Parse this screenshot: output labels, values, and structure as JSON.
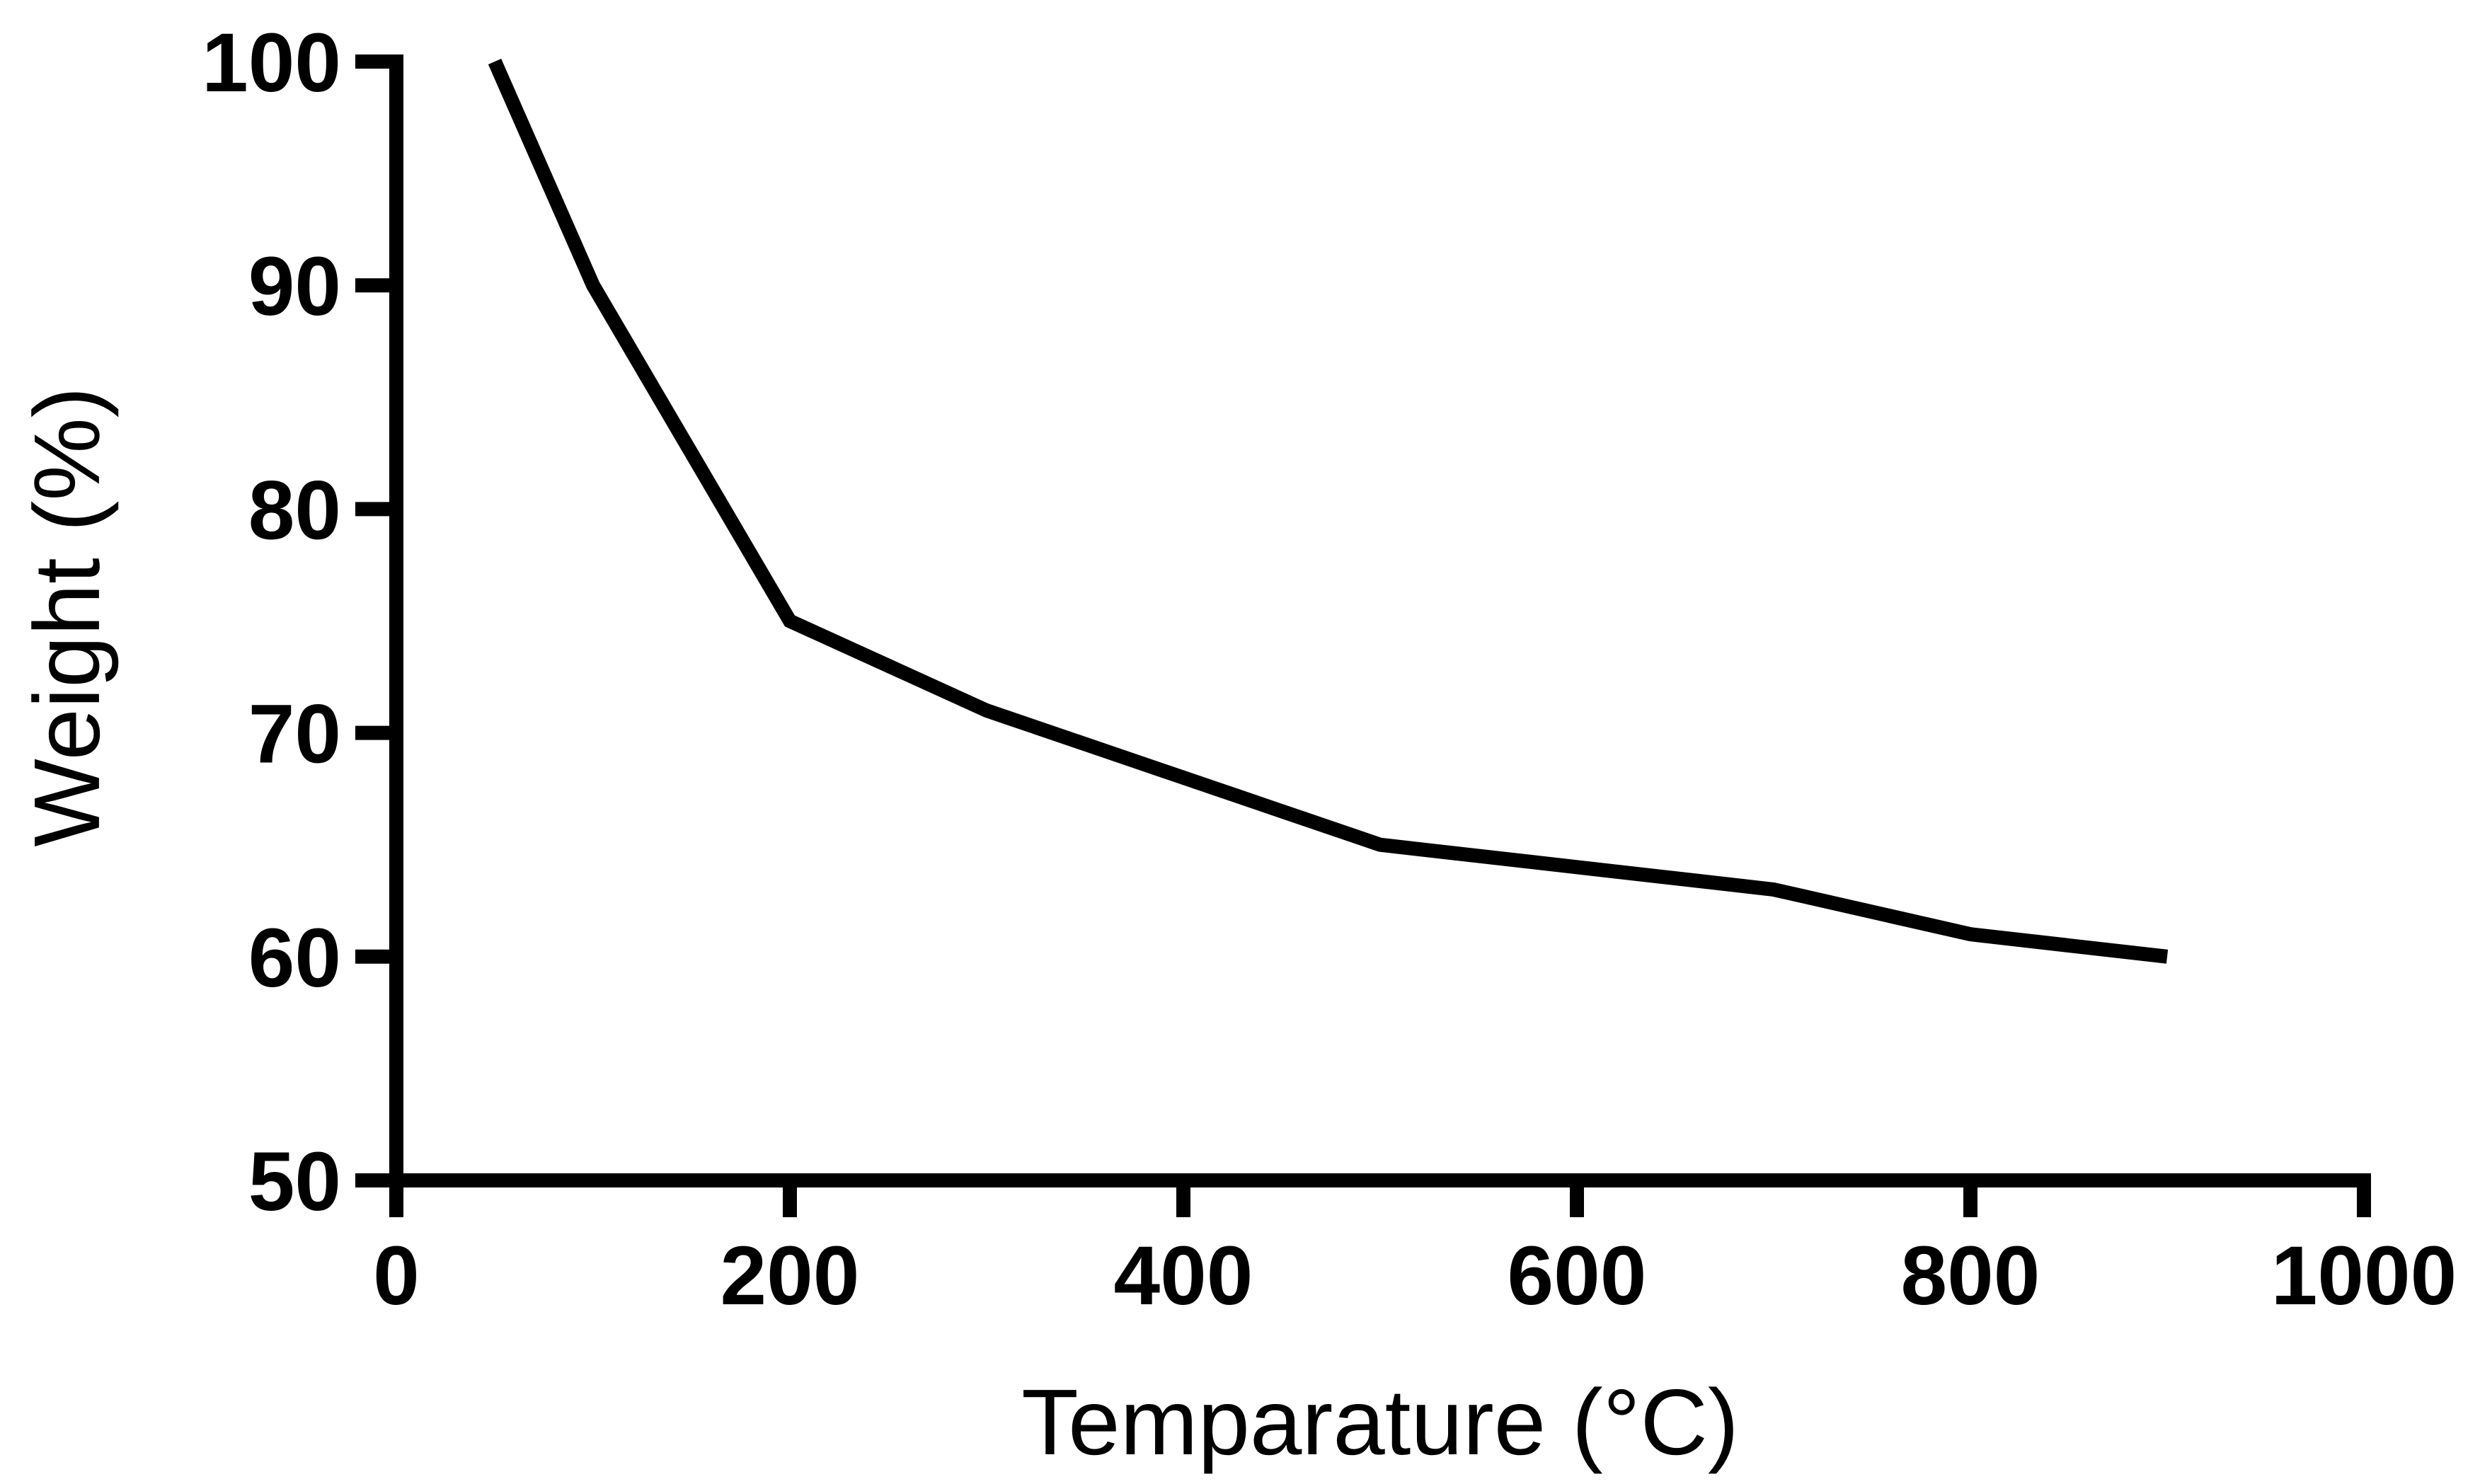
{
  "chart_data": {
    "type": "line",
    "title": "",
    "xlabel": "Temparature (°C)",
    "ylabel": "Weight (%)",
    "xlim": [
      0,
      1000
    ],
    "ylim": [
      50,
      100
    ],
    "xticks": [
      0,
      200,
      400,
      600,
      800,
      1000
    ],
    "yticks": [
      50,
      60,
      70,
      80,
      90,
      100
    ],
    "xtick_labels": [
      "0",
      "200",
      "400",
      "600",
      "800",
      "1000"
    ],
    "ytick_labels": [
      "50",
      "60",
      "70",
      "80",
      "90",
      "100"
    ],
    "grid": false,
    "legend": "none",
    "series": [
      {
        "name": "Weight",
        "color": "#000000",
        "x": [
          50,
          100,
          200,
          300,
          500,
          700,
          800,
          900
        ],
        "y": [
          100,
          90,
          75,
          71,
          65,
          63,
          61,
          60
        ]
      }
    ]
  }
}
